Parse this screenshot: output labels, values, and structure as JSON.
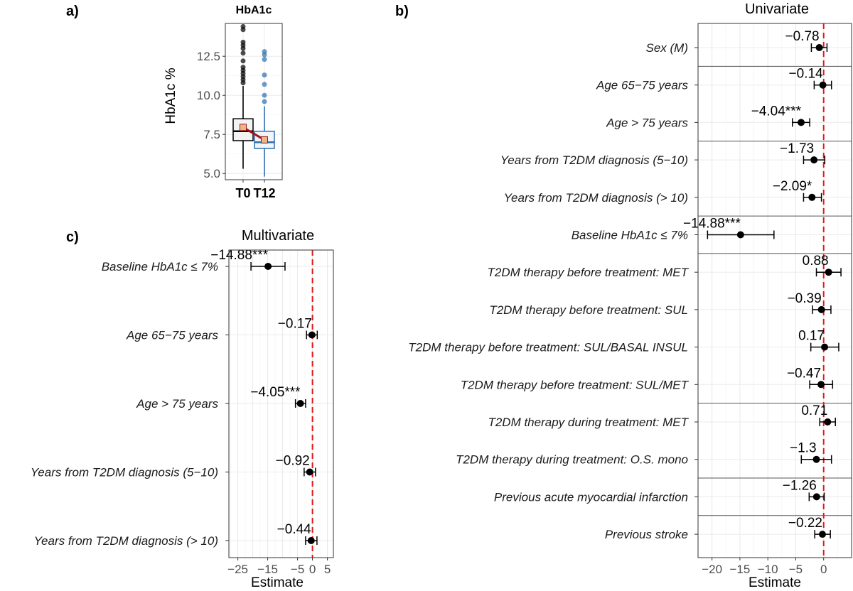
{
  "panels": {
    "a": {
      "letter": "a)"
    },
    "b": {
      "letter": "b)"
    },
    "c": {
      "letter": "c)"
    }
  },
  "chart_data": [
    {
      "type": "box",
      "panel": "a",
      "title": "HbA1c",
      "ylabel": "HbA1c %",
      "xlabel": "",
      "ylim": [
        4.6,
        14.6
      ],
      "yticks": [
        5.0,
        7.5,
        10.0,
        12.5
      ],
      "ytick_labels": [
        "5.0",
        "7.5",
        "10.0",
        "12.5"
      ],
      "grid": true,
      "categories": [
        "T0",
        "T12"
      ],
      "colors": {
        "T0": "#000000",
        "T12": "#2e6fae"
      },
      "box_fill": {
        "T0": "#f3f3f3",
        "T12": "#f1f5fa"
      },
      "mean_line_color": "#a31515",
      "mean_marker_color": "#e7b78a",
      "boxes": [
        {
          "name": "T0",
          "q1": 7.1,
          "median": 7.7,
          "q3": 8.5,
          "whisker_low": 5.3,
          "whisker_high": 10.6,
          "mean": 7.95,
          "outliers": [
            10.8,
            11.0,
            11.2,
            11.4,
            11.6,
            11.8,
            12.2,
            12.7,
            13.0,
            13.2,
            13.4,
            14.2,
            14.4
          ]
        },
        {
          "name": "T12",
          "q1": 6.6,
          "median": 7.0,
          "q3": 7.7,
          "whisker_low": 4.8,
          "whisker_high": 9.3,
          "mean": 7.15,
          "outliers": [
            9.6,
            10.0,
            10.7,
            11.3,
            12.3,
            12.6,
            12.8
          ]
        }
      ]
    },
    {
      "type": "forest",
      "panel": "b",
      "title": "Univariate",
      "xlabel": "Estimate",
      "xlim": [
        -22.5,
        5.0
      ],
      "xticks": [
        -20,
        -15,
        -10,
        -5,
        0
      ],
      "xtick_labels": [
        "−20",
        "−15",
        "−10",
        "−5",
        "0"
      ],
      "ref_line": 0,
      "ref_line_color": "#e31a1c",
      "grid": true,
      "rows": [
        {
          "label": "Sex (M)",
          "estimate": -0.78,
          "lower": -2.2,
          "upper": 0.6,
          "text": "−0.78"
        },
        {
          "label": "Age 65−75 years",
          "estimate": -0.14,
          "lower": -1.7,
          "upper": 1.4,
          "text": "−0.14"
        },
        {
          "label": "Age > 75 years",
          "estimate": -4.04,
          "lower": -5.6,
          "upper": -2.5,
          "text": "−4.04***"
        },
        {
          "label": "Years from T2DM diagnosis (5−10)",
          "estimate": -1.73,
          "lower": -3.6,
          "upper": 0.2,
          "text": "−1.73"
        },
        {
          "label": "Years from T2DM diagnosis (> 10)",
          "estimate": -2.09,
          "lower": -3.6,
          "upper": -0.4,
          "text": "−2.09*"
        },
        {
          "label": "Baseline HbA1c ≤ 7%",
          "estimate": -14.88,
          "lower": -20.8,
          "upper": -8.9,
          "text": "−14.88***"
        },
        {
          "label": "T2DM therapy before treatment: MET",
          "estimate": 0.88,
          "lower": -1.3,
          "upper": 3.1,
          "text": "0.88"
        },
        {
          "label": "T2DM therapy before treatment: SUL",
          "estimate": -0.39,
          "lower": -2.0,
          "upper": 1.3,
          "text": "−0.39"
        },
        {
          "label": "T2DM therapy before treatment: SUL/BASAL INSUL",
          "estimate": 0.17,
          "lower": -2.3,
          "upper": 2.7,
          "text": "0.17"
        },
        {
          "label": "T2DM therapy before treatment: SUL/MET",
          "estimate": -0.47,
          "lower": -2.5,
          "upper": 1.6,
          "text": "−0.47"
        },
        {
          "label": "T2DM therapy during treatment: MET",
          "estimate": 0.71,
          "lower": -0.7,
          "upper": 2.1,
          "text": "0.71"
        },
        {
          "label": "T2DM therapy during treatment: O.S. mono",
          "estimate": -1.3,
          "lower": -4.0,
          "upper": 1.4,
          "text": "−1.3"
        },
        {
          "label": "Previous acute myocardial infarction",
          "estimate": -1.26,
          "lower": -2.6,
          "upper": 0.1,
          "text": "−1.26"
        },
        {
          "label": "Previous stroke",
          "estimate": -0.22,
          "lower": -1.6,
          "upper": 1.2,
          "text": "−0.22"
        }
      ],
      "group_separators_after_row": [
        0,
        2,
        4,
        5,
        9,
        11,
        12
      ]
    },
    {
      "type": "forest",
      "panel": "c",
      "title": "Multivariate",
      "xlabel": "Estimate",
      "xlim": [
        -28.0,
        7.0
      ],
      "xticks": [
        -25,
        -15,
        -5,
        0,
        5
      ],
      "xtick_labels": [
        "−25",
        "−15",
        "−5",
        "0",
        "5"
      ],
      "ref_line": 0,
      "ref_line_color": "#e31a1c",
      "grid": true,
      "rows": [
        {
          "label": "Baseline HbA1c ≤ 7%",
          "estimate": -14.88,
          "lower": -20.6,
          "upper": -9.2,
          "text": "−14.88***"
        },
        {
          "label": "Age 65−75 years",
          "estimate": -0.17,
          "lower": -2.0,
          "upper": 1.6,
          "text": "−0.17"
        },
        {
          "label": "Age > 75 years",
          "estimate": -4.05,
          "lower": -5.7,
          "upper": -2.3,
          "text": "−4.05***"
        },
        {
          "label": "Years from T2DM diagnosis (5−10)",
          "estimate": -0.92,
          "lower": -2.8,
          "upper": 1.0,
          "text": "−0.92"
        },
        {
          "label": "Years from T2DM diagnosis (> 10)",
          "estimate": -0.44,
          "lower": -2.3,
          "upper": 1.5,
          "text": "−0.44"
        }
      ]
    }
  ]
}
